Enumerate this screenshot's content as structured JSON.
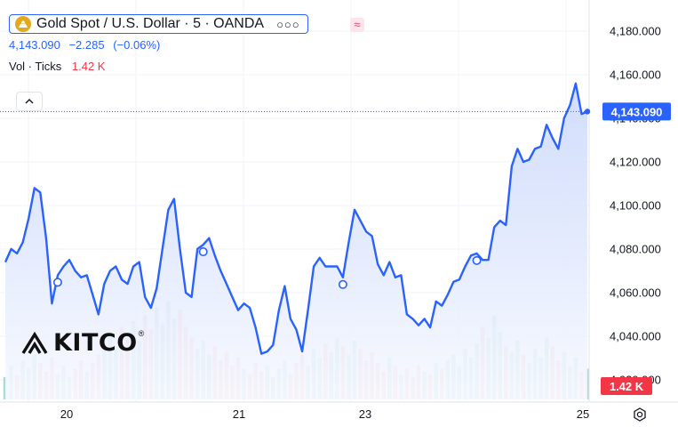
{
  "header": {
    "symbol_title": "Gold Spot / U.S. Dollar · 5 · OANDA",
    "more_icon": "ellipsis-icon",
    "indicator_icon": "approx-wave-icon",
    "price": "4,143.090",
    "change": "−2.285",
    "change_pct": "(−0.06%)",
    "volume_label": "Vol · Ticks",
    "volume_value": "1.42 K"
  },
  "watermark": {
    "brand": "KITCO",
    "mark": "®"
  },
  "colors": {
    "line": "#2962ff",
    "area_top": "#c9d7fb",
    "area_bottom": "#f7f9ff",
    "vol_up": "#8fcfc7",
    "vol_down": "#f1a3a6",
    "price_label_bg": "#2962ff",
    "volume_label_bg": "#f23645",
    "grid": "#f0f3fa"
  },
  "chart_data": {
    "type": "area",
    "title": "Gold Spot / U.S. Dollar · 5 · OANDA",
    "xlabel": "",
    "ylabel": "",
    "x_tick_labels": [
      "20",
      "21",
      "23",
      "25"
    ],
    "y_tick_labels": [
      "4,020.000",
      "4,040.000",
      "4,060.000",
      "4,080.000",
      "4,100.000",
      "4,120.000",
      "4,140.000",
      "4,160.000",
      "4,180.000"
    ],
    "ylim": [
      4011,
      4191
    ],
    "grid": true,
    "last_price": 4143.09,
    "last_price_label": "4,143.090",
    "volume_label": "1.42 K",
    "event_marker_indices": [
      9,
      34,
      58,
      81
    ],
    "series": [
      {
        "values": [
          4074,
          4080,
          4078,
          4083,
          4094,
          4108,
          4106,
          4085,
          4055,
          4068,
          4072,
          4075,
          4070,
          4067,
          4068,
          4059,
          4050,
          4064,
          4070,
          4072,
          4066,
          4064,
          4072,
          4074,
          4058,
          4053,
          4062,
          4080,
          4098,
          4103,
          4080,
          4060,
          4058,
          4080,
          4082,
          4085,
          4077,
          4070,
          4064,
          4058,
          4052,
          4055,
          4053,
          4044,
          4032,
          4033,
          4036,
          4052,
          4063,
          4048,
          4043,
          4033,
          4052,
          4072,
          4076,
          4072,
          4072,
          4072,
          4067,
          4083,
          4098,
          4093,
          4088,
          4086,
          4073,
          4068,
          4074,
          4067,
          4068,
          4050,
          4048,
          4045,
          4048,
          4044,
          4056,
          4054,
          4059,
          4065,
          4066,
          4072,
          4077,
          4078,
          4075,
          4075,
          4090,
          4093,
          4091,
          4118,
          4126,
          4120,
          4121,
          4126,
          4127,
          4137,
          4131,
          4126,
          4140,
          4146,
          4156,
          4142,
          4143
        ],
        "volumes": [
          8,
          12,
          9,
          14,
          11,
          16,
          13,
          10,
          15,
          9,
          12,
          8,
          11,
          14,
          10,
          13,
          16,
          20,
          24,
          19,
          26,
          22,
          28,
          21,
          30,
          25,
          33,
          27,
          35,
          29,
          32,
          26,
          22,
          18,
          21,
          16,
          19,
          14,
          17,
          12,
          15,
          11,
          9,
          13,
          10,
          12,
          8,
          11,
          14,
          9,
          13,
          16,
          12,
          18,
          15,
          20,
          17,
          22,
          19,
          16,
          21,
          18,
          14,
          17,
          13,
          10,
          15,
          12,
          9,
          11,
          8,
          12,
          10,
          9,
          13,
          11,
          14,
          16,
          12,
          18,
          15,
          20,
          26,
          22,
          30,
          24,
          19,
          17,
          21,
          16,
          13,
          18,
          15,
          22,
          19,
          14,
          17,
          12,
          15,
          10,
          11
        ]
      }
    ]
  }
}
